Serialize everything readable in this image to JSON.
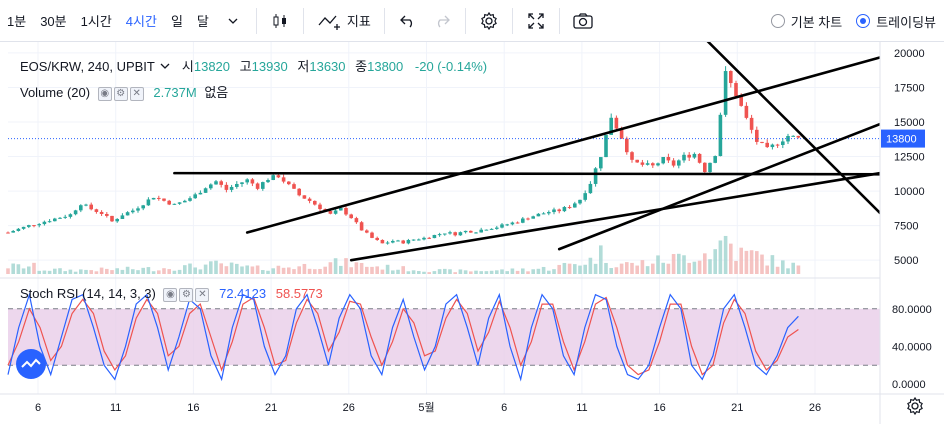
{
  "toolbar": {
    "intervals": [
      "1분",
      "30분",
      "1시간",
      "4시간",
      "일",
      "달"
    ],
    "active_interval": "4시간",
    "indicators_label": "지표",
    "chart_modes": [
      "기본 차트",
      "트레이딩뷰"
    ],
    "active_mode": "트레이딩뷰"
  },
  "legend": {
    "symbol": "EOS/KRW, 240, UPBIT",
    "open_label": "시",
    "open": "13820",
    "high_label": "고",
    "high": "13930",
    "low_label": "저",
    "low": "13630",
    "close_label": "종",
    "close": "13800",
    "change": "-20 (-0.14%)",
    "volume_label": "Volume (20)",
    "volume_value": "2.737M",
    "volume_extra": "없음",
    "rsi_label": "Stoch RSI (14, 14, 3, 3)",
    "rsi_k": "72.4123",
    "rsi_d": "58.5773"
  },
  "colors": {
    "up": "#26a69a",
    "down": "#ef5350",
    "accent": "#2962ff",
    "rsi_k": "#2962ff",
    "rsi_d": "#ef5350",
    "rsi_band": "#e8cde8"
  },
  "chart_data": {
    "type": "candlestick",
    "price_axis": {
      "min": 4000,
      "max": 20500,
      "ticks": [
        5000,
        7500,
        10000,
        12500,
        15000,
        17500,
        20000
      ]
    },
    "last_price": 13800,
    "x_ticks": [
      "6",
      "11",
      "16",
      "21",
      "26",
      "5월",
      "6",
      "11",
      "16",
      "21",
      "26"
    ],
    "close_path": [
      [
        0,
        7000
      ],
      [
        2,
        7500
      ],
      [
        4,
        7900
      ],
      [
        6,
        8300
      ],
      [
        7,
        9100
      ],
      [
        8,
        8700
      ],
      [
        9,
        8400
      ],
      [
        10,
        7800
      ],
      [
        11,
        8300
      ],
      [
        12,
        8600
      ],
      [
        13,
        9100
      ],
      [
        14,
        9600
      ],
      [
        15,
        9300
      ],
      [
        16,
        9000
      ],
      [
        17,
        9300
      ],
      [
        18,
        9700
      ],
      [
        19,
        10300
      ],
      [
        20,
        10700
      ],
      [
        21,
        10100
      ],
      [
        22,
        10500
      ],
      [
        23,
        10800
      ],
      [
        24,
        10300
      ],
      [
        25,
        10900
      ],
      [
        26,
        11100
      ],
      [
        27,
        10400
      ],
      [
        28,
        9700
      ],
      [
        29,
        9300
      ],
      [
        30,
        8800
      ],
      [
        31,
        8300
      ],
      [
        32,
        8700
      ],
      [
        33,
        8100
      ],
      [
        34,
        7200
      ],
      [
        35,
        6600
      ],
      [
        36,
        6200
      ],
      [
        37,
        6400
      ],
      [
        38,
        6300
      ],
      [
        39,
        6500
      ],
      [
        40,
        6600
      ],
      [
        41,
        6800
      ],
      [
        42,
        7000
      ],
      [
        43,
        6900
      ],
      [
        44,
        7100
      ],
      [
        45,
        7100
      ],
      [
        46,
        7300
      ],
      [
        47,
        7400
      ],
      [
        48,
        7600
      ],
      [
        49,
        7800
      ],
      [
        50,
        8100
      ],
      [
        51,
        8300
      ],
      [
        52,
        8500
      ],
      [
        53,
        8600
      ],
      [
        54,
        8900
      ],
      [
        55,
        9400
      ],
      [
        56,
        10600
      ],
      [
        57,
        12600
      ],
      [
        58,
        15400
      ],
      [
        59,
        13900
      ],
      [
        60,
        12100
      ],
      [
        61,
        11900
      ],
      [
        62,
        11800
      ],
      [
        63,
        12300
      ],
      [
        64,
        11900
      ],
      [
        65,
        12500
      ],
      [
        66,
        12700
      ],
      [
        67,
        11500
      ],
      [
        68,
        12700
      ],
      [
        69,
        18500
      ],
      [
        70,
        17000
      ],
      [
        71,
        15200
      ],
      [
        72,
        13600
      ],
      [
        73,
        13000
      ],
      [
        74,
        13500
      ],
      [
        75,
        14000
      ],
      [
        76,
        13800
      ]
    ],
    "volume_path": [
      [
        3,
        0.12
      ],
      [
        6,
        0.1
      ],
      [
        10,
        0.12
      ],
      [
        14,
        0.14
      ],
      [
        18,
        0.2
      ],
      [
        20,
        0.25
      ],
      [
        24,
        0.15
      ],
      [
        28,
        0.2
      ],
      [
        32,
        0.3
      ],
      [
        36,
        0.18
      ],
      [
        40,
        0.1
      ],
      [
        44,
        0.08
      ],
      [
        48,
        0.1
      ],
      [
        52,
        0.15
      ],
      [
        56,
        0.35
      ],
      [
        57,
        0.55
      ],
      [
        58,
        0.3
      ],
      [
        60,
        0.25
      ],
      [
        64,
        0.4
      ],
      [
        68,
        0.6
      ],
      [
        69,
        1.0
      ],
      [
        70,
        0.55
      ],
      [
        72,
        0.5
      ],
      [
        74,
        0.3
      ],
      [
        76,
        0.2
      ]
    ],
    "stoch_rsi": {
      "ticks": [
        0,
        40,
        80
      ],
      "band": [
        20,
        80
      ],
      "k": [
        10,
        60,
        95,
        40,
        10,
        50,
        90,
        95,
        60,
        20,
        5,
        40,
        85,
        95,
        60,
        15,
        50,
        90,
        80,
        30,
        5,
        60,
        95,
        90,
        40,
        10,
        30,
        80,
        95,
        60,
        20,
        70,
        95,
        80,
        30,
        10,
        60,
        90,
        50,
        15,
        40,
        85,
        95,
        60,
        20,
        70,
        95,
        40,
        5,
        60,
        95,
        80,
        30,
        10,
        60,
        95,
        90,
        40,
        10,
        5,
        20,
        60,
        95,
        80,
        20,
        5,
        30,
        80,
        95,
        60,
        20,
        10,
        30,
        60,
        72
      ],
      "d": [
        20,
        45,
        80,
        60,
        25,
        40,
        75,
        90,
        75,
        35,
        15,
        30,
        70,
        90,
        75,
        30,
        40,
        75,
        85,
        50,
        15,
        45,
        85,
        92,
        60,
        20,
        25,
        65,
        90,
        75,
        35,
        55,
        88,
        85,
        50,
        20,
        45,
        80,
        65,
        30,
        35,
        70,
        90,
        75,
        35,
        55,
        88,
        60,
        20,
        45,
        85,
        85,
        45,
        15,
        45,
        85,
        92,
        60,
        20,
        10,
        15,
        45,
        85,
        85,
        40,
        10,
        20,
        65,
        90,
        75,
        35,
        15,
        25,
        50,
        58
      ]
    },
    "trendlines_price": [
      {
        "x1": 23,
        "y1": 7000,
        "x2": 84,
        "y2": 19700
      },
      {
        "x1": 33,
        "y1": 5000,
        "x2": 100,
        "y2": 13300
      },
      {
        "x1": 16,
        "y1": 11300,
        "x2": 98,
        "y2": 11200
      },
      {
        "x1": 53,
        "y1": 5800,
        "x2": 98,
        "y2": 19000
      },
      {
        "x1": 66,
        "y1": 21800,
        "x2": 90,
        "y2": 3800
      }
    ]
  }
}
